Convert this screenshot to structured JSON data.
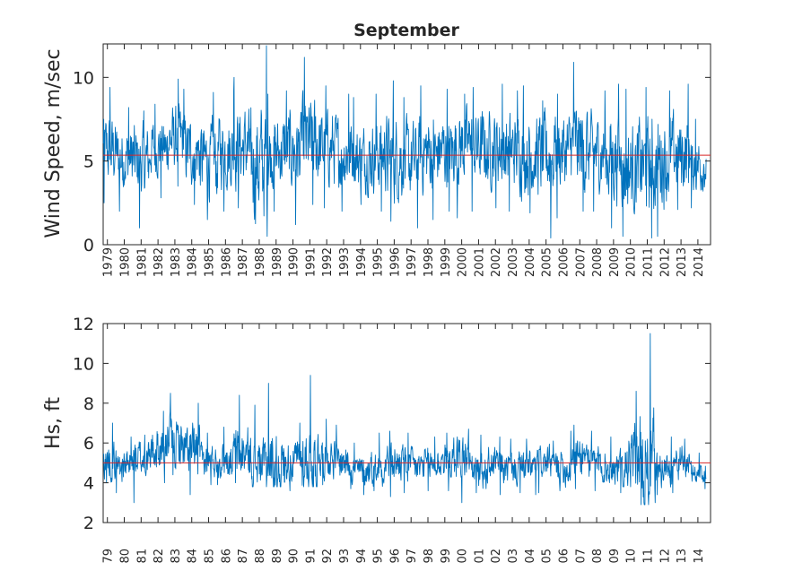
{
  "chart_data": [
    {
      "type": "line",
      "title": "September",
      "xlabel": "",
      "ylabel": "Wind Speed, m/sec",
      "ylim": [
        0,
        12
      ],
      "yticks": [
        0,
        5,
        10
      ],
      "xlim": [
        1978.75,
        2014.75
      ],
      "xtick_labels": [
        "1979",
        "1980",
        "1981",
        "1982",
        "1983",
        "1984",
        "1985",
        "1986",
        "1987",
        "1988",
        "1989",
        "1990",
        "1991",
        "1992",
        "1993",
        "1994",
        "1995",
        "1996",
        "1997",
        "1998",
        "1999",
        "2000",
        "2001",
        "2002",
        "2003",
        "2004",
        "2005",
        "2006",
        "2007",
        "2008",
        "2009",
        "2010",
        "2011",
        "2012",
        "2013",
        "2014"
      ],
      "mean_line": 5.35,
      "series_color": "#0072BD",
      "mean_color": "#D62728",
      "grid": false,
      "series": [
        {
          "x": [
            1979,
            1980,
            1981,
            1982,
            1983,
            1984,
            1985,
            1986,
            1987,
            1988,
            1989,
            1990,
            1991,
            1992,
            1993,
            1994,
            1995,
            1996,
            1997,
            1998,
            1999,
            2000,
            2001,
            2002,
            2003,
            2004,
            2005,
            2006,
            2007,
            2008,
            2009,
            2010,
            2011,
            2012,
            2013,
            2014
          ],
          "median": [
            5.6,
            5.2,
            5.0,
            5.8,
            6.3,
            5.6,
            5.0,
            5.6,
            5.8,
            4.8,
            5.5,
            5.6,
            6.0,
            5.8,
            5.5,
            5.2,
            5.4,
            5.2,
            4.9,
            5.5,
            5.6,
            5.9,
            5.8,
            5.8,
            5.6,
            5.4,
            5.3,
            5.6,
            5.8,
            5.5,
            5.2,
            4.6,
            4.7,
            5.1,
            5.4,
            4.8
          ],
          "max": [
            9.4,
            8.2,
            8.0,
            8.4,
            9.9,
            9.3,
            9.1,
            9.2,
            10.0,
            11.9,
            9.0,
            9.2,
            11.2,
            9.5,
            9.0,
            8.8,
            9.0,
            9.8,
            8.8,
            9.5,
            9.3,
            9.0,
            9.4,
            9.6,
            9.2,
            9.5,
            8.6,
            9.0,
            10.9,
            9.2,
            9.6,
            9.3,
            9.4,
            9.2,
            9.6,
            7.5
          ],
          "min": [
            2.5,
            2.0,
            1.0,
            2.8,
            3.5,
            2.4,
            1.5,
            2.0,
            2.2,
            0.5,
            2.0,
            1.2,
            2.4,
            2.2,
            2.0,
            2.4,
            2.0,
            1.4,
            1.0,
            1.5,
            2.0,
            1.6,
            2.0,
            2.2,
            2.0,
            1.9,
            0.4,
            1.6,
            2.0,
            2.0,
            1.0,
            0.5,
            0.4,
            0.5,
            2.1,
            2.2
          ]
        }
      ]
    },
    {
      "type": "line",
      "title": "",
      "xlabel": "",
      "ylabel": "Hs, ft",
      "ylim": [
        2,
        12
      ],
      "yticks": [
        2,
        4,
        6,
        8,
        10,
        12
      ],
      "xlim": [
        1978.75,
        2014.75
      ],
      "xtick_labels": [
        "79",
        "80",
        "81",
        "82",
        "83",
        "84",
        "85",
        "86",
        "87",
        "88",
        "89",
        "90",
        "91",
        "92",
        "93",
        "94",
        "95",
        "96",
        "97",
        "98",
        "99",
        "00",
        "01",
        "02",
        "03",
        "04",
        "05",
        "06",
        "07",
        "08",
        "09",
        "10",
        "11",
        "12",
        "13",
        "14"
      ],
      "mean_line": 5.0,
      "series_color": "#0072BD",
      "mean_color": "#D62728",
      "grid": false,
      "series": [
        {
          "x": [
            1979,
            1980,
            1981,
            1982,
            1983,
            1984,
            1985,
            1986,
            1987,
            1988,
            1989,
            1990,
            1991,
            1992,
            1993,
            1994,
            1995,
            1996,
            1997,
            1998,
            1999,
            2000,
            2001,
            2002,
            2003,
            2004,
            2005,
            2006,
            2007,
            2008,
            2009,
            2010,
            2011,
            2012,
            2013,
            2014
          ],
          "median": [
            5.1,
            4.9,
            5.2,
            5.7,
            6.0,
            5.5,
            5.1,
            5.2,
            5.4,
            5.0,
            4.9,
            5.1,
            5.2,
            5.3,
            5.1,
            4.6,
            4.8,
            5.0,
            4.8,
            4.9,
            5.1,
            5.3,
            4.6,
            4.9,
            4.7,
            4.8,
            5.0,
            4.8,
            5.4,
            5.0,
            4.8,
            5.2,
            5.1,
            4.7,
            5.0,
            4.5
          ],
          "max": [
            7.0,
            6.3,
            6.4,
            7.6,
            8.5,
            8.0,
            6.5,
            6.8,
            8.4,
            7.9,
            9.0,
            7.0,
            9.4,
            7.2,
            6.9,
            6.0,
            6.5,
            6.6,
            6.5,
            6.3,
            6.5,
            6.7,
            6.4,
            6.3,
            6.2,
            6.2,
            6.1,
            6.6,
            6.9,
            6.6,
            6.3,
            8.6,
            11.5,
            6.3,
            6.2,
            5.5
          ],
          "min": [
            4.0,
            3.5,
            3.0,
            4.0,
            4.4,
            3.4,
            3.9,
            3.9,
            4.0,
            3.8,
            3.8,
            3.6,
            3.8,
            3.9,
            3.7,
            3.4,
            3.6,
            3.3,
            3.5,
            3.6,
            3.6,
            3.0,
            3.5,
            3.4,
            3.5,
            3.4,
            3.5,
            3.6,
            3.7,
            3.6,
            3.5,
            3.8,
            2.9,
            3.4,
            3.5,
            3.7
          ]
        }
      ]
    }
  ]
}
